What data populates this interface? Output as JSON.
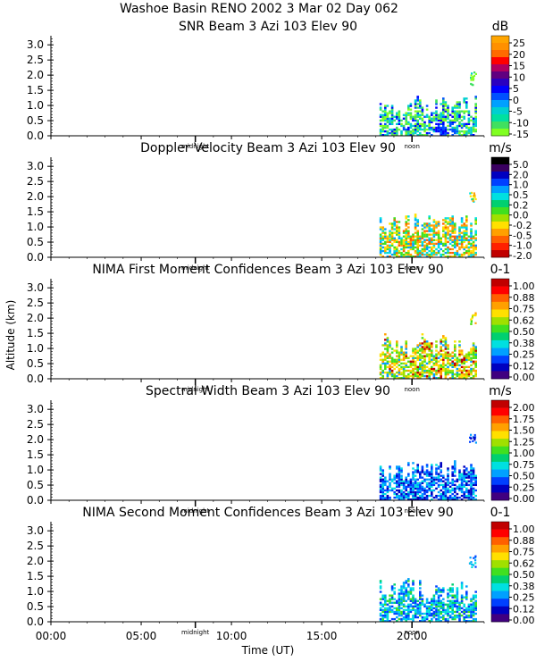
{
  "figure": {
    "title": "Washoe Basin RENO 2002    3 Mar 02 Day 062",
    "ylabel": "Altitude (km)",
    "xlabel": "Time (UT)",
    "x_tick_labels": [
      "00:00",
      "05:00",
      "10:00",
      "15:00",
      "20:00"
    ],
    "y_tick_labels": [
      "3.0",
      "2.5",
      "2.0",
      "1.5",
      "1.0",
      "0.5",
      "0.0"
    ],
    "day_markers": [
      "midnight",
      "noon"
    ]
  },
  "chart_data": [
    {
      "type": "heatmap",
      "title": "SNR Beam 3 Azi 103 Elev 90",
      "unit": "dB",
      "xlim": [
        0,
        24
      ],
      "ylim": [
        0,
        3.3
      ],
      "colorbar_ticks": [
        "25",
        "20",
        "15",
        "10",
        "5",
        "0",
        "-5",
        "-10",
        "-15"
      ],
      "colorbar_colors": [
        "#ffa500",
        "#ff9000",
        "#ff6a00",
        "#ff0000",
        "#b00060",
        "#600080",
        "#2a00c0",
        "#0000ff",
        "#0050ff",
        "#00a0ff",
        "#00d0d0",
        "#00e0a0",
        "#40e060",
        "#80ff20"
      ],
      "data_extent": {
        "time_start": 18.2,
        "time_end": 23.6,
        "alt_max": 1.3,
        "sporadic_alt": [
          1.7,
          2.2
        ]
      },
      "dominant_colors": [
        "#80ff20",
        "#40e060",
        "#00d0d0"
      ],
      "accent_colors": [
        "#0050ff",
        "#0000ff"
      ],
      "accent_region": {
        "time_start": 21.2,
        "time_end": 22.4,
        "alt_max": 0.45
      }
    },
    {
      "type": "heatmap",
      "title": "Doppler Velocity Beam 3 Azi 103 Elev 90",
      "unit": "m/s",
      "xlim": [
        0,
        24
      ],
      "ylim": [
        0,
        3.3
      ],
      "colorbar_ticks": [
        "5.0",
        "2.0",
        "1.0",
        "0.5",
        "0.2",
        "0.0",
        "-0.2",
        "-0.5",
        "-1.0",
        "-2.0"
      ],
      "colorbar_colors": [
        "#000000",
        "#3a0060",
        "#0000c0",
        "#0040ff",
        "#00a0ff",
        "#00e0e0",
        "#00d070",
        "#40e020",
        "#a0e000",
        "#ffe000",
        "#ffa000",
        "#ff6000",
        "#ff2000",
        "#c00000"
      ],
      "data_extent": {
        "time_start": 18.2,
        "time_end": 23.6,
        "alt_max": 1.4,
        "sporadic_alt": [
          1.8,
          2.2
        ]
      },
      "dominant_colors": [
        "#ffe000",
        "#ffa000",
        "#00e0e0",
        "#40e020"
      ],
      "accent_colors": [
        "#ff6000",
        "#00a0ff"
      ]
    },
    {
      "type": "heatmap",
      "title": "NIMA First Moment Confidences Beam 3 Azi 103 Elev 90",
      "unit": "0-1",
      "xlim": [
        0,
        24
      ],
      "ylim": [
        0,
        3.3
      ],
      "colorbar_ticks": [
        "1.00",
        "0.88",
        "0.75",
        "0.62",
        "0.50",
        "0.38",
        "0.25",
        "0.12",
        "0.00"
      ],
      "colorbar_colors": [
        "#c00000",
        "#ff0000",
        "#ff6000",
        "#ffa000",
        "#ffe000",
        "#a0e000",
        "#40e020",
        "#00d070",
        "#00e0e0",
        "#00a0ff",
        "#0040ff",
        "#0000c0",
        "#400080"
      ],
      "data_extent": {
        "time_start": 18.2,
        "time_end": 23.6,
        "alt_max": 1.5,
        "sporadic_alt": [
          1.8,
          2.2
        ]
      },
      "dominant_colors": [
        "#a0e000",
        "#ffe000",
        "#ffa000",
        "#40e020"
      ],
      "accent_colors": [
        "#c00000",
        "#00a0ff"
      ]
    },
    {
      "type": "heatmap",
      "title": "Spectral Width Beam 3 Azi 103 Elev 90",
      "unit": "m/s",
      "xlim": [
        0,
        24
      ],
      "ylim": [
        0,
        3.3
      ],
      "colorbar_ticks": [
        "2.00",
        "1.75",
        "1.50",
        "1.25",
        "1.00",
        "0.75",
        "0.50",
        "0.25",
        "0.00"
      ],
      "colorbar_colors": [
        "#c00000",
        "#ff0000",
        "#ff6000",
        "#ffa000",
        "#ffe000",
        "#a0e000",
        "#40e020",
        "#00d070",
        "#00e0e0",
        "#00a0ff",
        "#0040ff",
        "#0000c0",
        "#400080"
      ],
      "data_extent": {
        "time_start": 18.2,
        "time_end": 23.6,
        "alt_max": 1.3,
        "sporadic_alt": [
          1.8,
          2.2
        ]
      },
      "dominant_colors": [
        "#0040ff",
        "#0000c0",
        "#00a0ff"
      ],
      "accent_colors": [
        "#00e0e0"
      ]
    },
    {
      "type": "heatmap",
      "title": "NIMA Second Moment Confidences Beam 3 Azi 103 Elev 90",
      "unit": "0-1",
      "xlim": [
        0,
        24
      ],
      "ylim": [
        0,
        3.3
      ],
      "colorbar_ticks": [
        "1.00",
        "0.88",
        "0.75",
        "0.62",
        "0.50",
        "0.38",
        "0.25",
        "0.12",
        "0.00"
      ],
      "colorbar_colors": [
        "#c00000",
        "#ff0000",
        "#ff6000",
        "#ffa000",
        "#ffe000",
        "#a0e000",
        "#40e020",
        "#00d070",
        "#00e0e0",
        "#00a0ff",
        "#0040ff",
        "#0000c0",
        "#400080"
      ],
      "data_extent": {
        "time_start": 18.2,
        "time_end": 23.6,
        "alt_max": 1.4,
        "sporadic_alt": [
          1.8,
          2.2
        ]
      },
      "dominant_colors": [
        "#0040ff",
        "#00a0ff",
        "#00e0e0"
      ],
      "accent_colors": [
        "#00d070",
        "#40e020"
      ]
    }
  ]
}
